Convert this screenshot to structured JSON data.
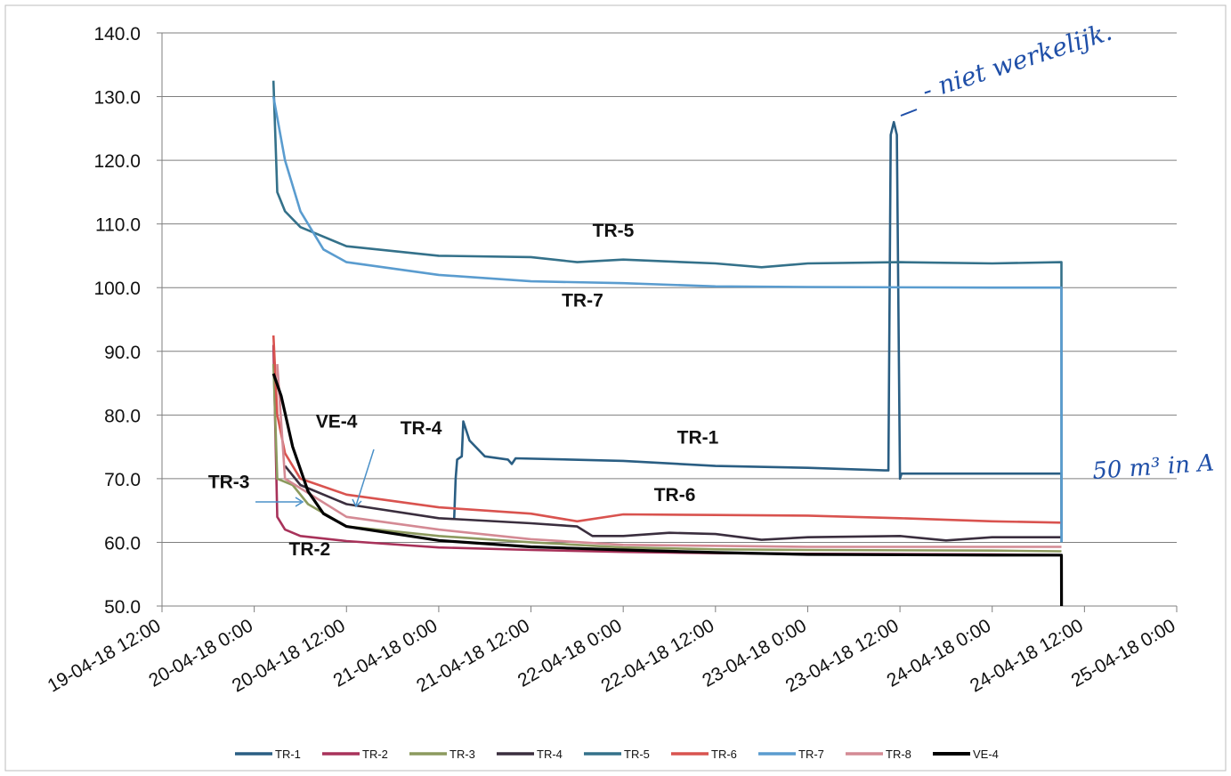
{
  "chart_data": {
    "type": "line",
    "title": "",
    "xlabel": "",
    "ylabel": "",
    "ylim": [
      50,
      140
    ],
    "yticks": [
      "50.0",
      "60.0",
      "70.0",
      "80.0",
      "90.0",
      "100.0",
      "110.0",
      "120.0",
      "130.0",
      "140.0"
    ],
    "xlim": [
      "19-04-18 12:00",
      "25-04-18 0:00"
    ],
    "xticks": [
      "19-04-18 12:00",
      "20-04-18 0:00",
      "20-04-18 12:00",
      "21-04-18 0:00",
      "21-04-18 12:00",
      "22-04-18 0:00",
      "22-04-18 12:00",
      "23-04-18 0:00",
      "23-04-18 12:00",
      "24-04-18 0:00",
      "24-04-18 12:00",
      "25-04-18 0:00"
    ],
    "grid": "horizontal",
    "legend_position": "bottom",
    "series": [
      {
        "name": "TR-1",
        "color": "#2a5e83",
        "points": [
          [
            "21-04-18 2:00",
            63.5
          ],
          [
            "21-04-18 2:12",
            70
          ],
          [
            "21-04-18 2:24",
            73
          ],
          [
            "21-04-18 3:00",
            73.5
          ],
          [
            "21-04-18 3:12",
            79
          ],
          [
            "21-04-18 4:00",
            76
          ],
          [
            "21-04-18 6:00",
            73.5
          ],
          [
            "21-04-18 9:00",
            73
          ],
          [
            "21-04-18 9:30",
            72.3
          ],
          [
            "21-04-18 10:00",
            73.2
          ],
          [
            "22-04-18 0:00",
            72.8
          ],
          [
            "22-04-18 12:00",
            72
          ],
          [
            "23-04-18 0:00",
            71.7
          ],
          [
            "23-04-18 10:00",
            71.3
          ],
          [
            "23-04-18 10:30",
            71.3
          ],
          [
            "23-04-18 10:48",
            124
          ],
          [
            "23-04-18 11:12",
            126
          ],
          [
            "23-04-18 11:36",
            124
          ],
          [
            "23-04-18 12:00",
            70
          ],
          [
            "23-04-18 12:12",
            70.8
          ],
          [
            "24-04-18 9:00",
            70.8
          ],
          [
            "24-04-18 9:01",
            62
          ]
        ]
      },
      {
        "name": "TR-2",
        "color": "#a8325a",
        "points": [
          [
            "20-04-18 2:30",
            91
          ],
          [
            "20-04-18 3:00",
            64
          ],
          [
            "20-04-18 4:00",
            62
          ],
          [
            "20-04-18 6:00",
            61
          ],
          [
            "20-04-18 12:00",
            60.2
          ],
          [
            "21-04-18 0:00",
            59.2
          ],
          [
            "21-04-18 12:00",
            58.8
          ],
          [
            "22-04-18 0:00",
            58.5
          ],
          [
            "22-04-18 12:00",
            58.3
          ],
          [
            "23-04-18 0:00",
            58.2
          ],
          [
            "24-04-18 0:00",
            58.1
          ],
          [
            "24-04-18 9:00",
            58
          ]
        ]
      },
      {
        "name": "TR-3",
        "color": "#8c9a5e",
        "points": [
          [
            "20-04-18 2:30",
            88
          ],
          [
            "20-04-18 3:00",
            70
          ],
          [
            "20-04-18 5:00",
            69
          ],
          [
            "20-04-18 7:00",
            66
          ],
          [
            "20-04-18 12:00",
            62.5
          ],
          [
            "21-04-18 0:00",
            61
          ],
          [
            "21-04-18 12:00",
            60
          ],
          [
            "22-04-18 0:00",
            59.2
          ],
          [
            "22-04-18 12:00",
            58.9
          ],
          [
            "23-04-18 0:00",
            58.8
          ],
          [
            "24-04-18 0:00",
            58.7
          ],
          [
            "24-04-18 9:00",
            58.6
          ]
        ]
      },
      {
        "name": "TR-4",
        "color": "#3a2e3e",
        "points": [
          [
            "20-04-18 4:00",
            72
          ],
          [
            "20-04-18 6:00",
            69
          ],
          [
            "20-04-18 12:00",
            66
          ],
          [
            "21-04-18 0:00",
            63.8
          ],
          [
            "21-04-18 12:00",
            63
          ],
          [
            "21-04-18 18:00",
            62.5
          ],
          [
            "21-04-18 20:00",
            61
          ],
          [
            "22-04-18 0:00",
            61
          ],
          [
            "22-04-18 6:00",
            61.5
          ],
          [
            "22-04-18 12:00",
            61.3
          ],
          [
            "22-04-18 18:00",
            60.4
          ],
          [
            "23-04-18 0:00",
            60.8
          ],
          [
            "23-04-18 12:00",
            61
          ],
          [
            "23-04-18 18:00",
            60.3
          ],
          [
            "24-04-18 0:00",
            60.8
          ],
          [
            "24-04-18 9:00",
            60.8
          ]
        ]
      },
      {
        "name": "TR-5",
        "color": "#34718a",
        "points": [
          [
            "20-04-18 2:30",
            132.5
          ],
          [
            "20-04-18 3:00",
            115
          ],
          [
            "20-04-18 4:00",
            112
          ],
          [
            "20-04-18 6:00",
            109.5
          ],
          [
            "20-04-18 12:00",
            106.5
          ],
          [
            "21-04-18 0:00",
            105
          ],
          [
            "21-04-18 12:00",
            104.8
          ],
          [
            "21-04-18 18:00",
            104
          ],
          [
            "22-04-18 0:00",
            104.4
          ],
          [
            "22-04-18 12:00",
            103.8
          ],
          [
            "22-04-18 18:00",
            103.2
          ],
          [
            "23-04-18 0:00",
            103.8
          ],
          [
            "23-04-18 12:00",
            104
          ],
          [
            "24-04-18 0:00",
            103.8
          ],
          [
            "24-04-18 9:00",
            104
          ],
          [
            "24-04-18 9:01",
            60
          ]
        ]
      },
      {
        "name": "TR-6",
        "color": "#d9534f",
        "points": [
          [
            "20-04-18 2:30",
            92.5
          ],
          [
            "20-04-18 3:00",
            80
          ],
          [
            "20-04-18 4:00",
            74
          ],
          [
            "20-04-18 6:00",
            70
          ],
          [
            "20-04-18 12:00",
            67.5
          ],
          [
            "21-04-18 0:00",
            65.5
          ],
          [
            "21-04-18 12:00",
            64.5
          ],
          [
            "21-04-18 18:00",
            63.3
          ],
          [
            "22-04-18 0:00",
            64.4
          ],
          [
            "22-04-18 12:00",
            64.3
          ],
          [
            "23-04-18 0:00",
            64.2
          ],
          [
            "23-04-18 12:00",
            63.8
          ],
          [
            "24-04-18 0:00",
            63.3
          ],
          [
            "24-04-18 9:00",
            63.1
          ]
        ]
      },
      {
        "name": "TR-7",
        "color": "#5a9ccf",
        "points": [
          [
            "20-04-18 2:30",
            130
          ],
          [
            "20-04-18 4:00",
            120
          ],
          [
            "20-04-18 6:00",
            112
          ],
          [
            "20-04-18 9:00",
            106
          ],
          [
            "20-04-18 12:00",
            104
          ],
          [
            "21-04-18 0:00",
            102
          ],
          [
            "21-04-18 12:00",
            101
          ],
          [
            "22-04-18 0:00",
            100.7
          ],
          [
            "22-04-18 12:00",
            100.2
          ],
          [
            "23-04-18 0:00",
            100.1
          ],
          [
            "24-04-18 0:00",
            100
          ],
          [
            "24-04-18 9:00",
            100
          ],
          [
            "24-04-18 9:01",
            60
          ]
        ]
      },
      {
        "name": "TR-8",
        "color": "#d48a94",
        "points": [
          [
            "20-04-18 3:00",
            88
          ],
          [
            "20-04-18 4:00",
            70
          ],
          [
            "20-04-18 12:00",
            64
          ],
          [
            "21-04-18 0:00",
            62
          ],
          [
            "21-04-18 12:00",
            60.5
          ],
          [
            "22-04-18 0:00",
            59.6
          ],
          [
            "23-04-18 0:00",
            59.3
          ],
          [
            "24-04-18 0:00",
            59.3
          ],
          [
            "24-04-18 9:00",
            59.3
          ]
        ]
      },
      {
        "name": "VE-4",
        "color": "#000000",
        "points": [
          [
            "20-04-18 2:30",
            86.5
          ],
          [
            "20-04-18 3:30",
            83
          ],
          [
            "20-04-18 5:00",
            75
          ],
          [
            "20-04-18 7:00",
            68
          ],
          [
            "20-04-18 9:00",
            64.5
          ],
          [
            "20-04-18 12:00",
            62.5
          ],
          [
            "21-04-18 0:00",
            60.3
          ],
          [
            "21-04-18 12:00",
            59.3
          ],
          [
            "22-04-18 0:00",
            58.8
          ],
          [
            "22-04-18 12:00",
            58.4
          ],
          [
            "23-04-18 0:00",
            58.1
          ],
          [
            "24-04-18 0:00",
            58
          ],
          [
            "24-04-18 9:00",
            58
          ],
          [
            "24-04-18 9:01",
            50
          ]
        ]
      }
    ],
    "annotations": [
      {
        "text": "TR-5",
        "x": "21-04-18 20:00",
        "y": 108
      },
      {
        "text": "TR-7",
        "x": "21-04-18 16:00",
        "y": 97
      },
      {
        "text": "VE-4",
        "x": "20-04-18 8:00",
        "y": 78
      },
      {
        "text": "TR-4",
        "x": "20-04-18 19:00",
        "y": 77
      },
      {
        "text": "TR-1",
        "x": "22-04-18 7:00",
        "y": 75.5
      },
      {
        "text": "TR-6",
        "x": "22-04-18 4:00",
        "y": 66.5
      },
      {
        "text": "TR-3",
        "x": "19-04-18 18:00",
        "y": 68.5
      },
      {
        "text": "TR-2",
        "x": "20-04-18 4:30",
        "y": 58
      }
    ],
    "handwritten_notes": [
      "- niet werkelijk.",
      "50 m³ in A"
    ]
  }
}
